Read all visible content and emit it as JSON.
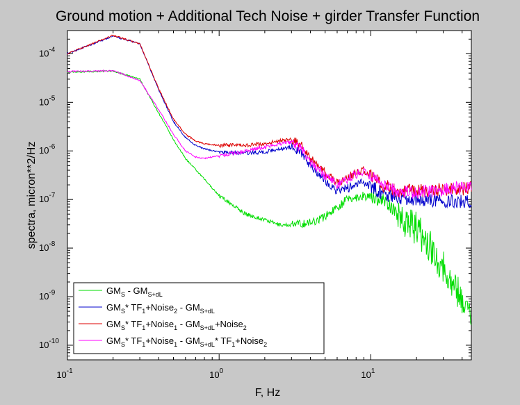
{
  "chart_data": {
    "type": "line",
    "title": "Ground motion + Additional Tech Noise + girder Transfer Function",
    "xlabel": "F, Hz",
    "ylabel": "spectra, micron**2/Hz",
    "xscale": "log",
    "yscale": "log",
    "xlim": [
      0.1,
      46
    ],
    "ylim": [
      5e-11,
      0.0003
    ],
    "x_ticks": [
      {
        "value": 0.1,
        "base": "10",
        "exp": "-1"
      },
      {
        "value": 1,
        "base": "10",
        "exp": "0"
      },
      {
        "value": 10,
        "base": "10",
        "exp": "1"
      }
    ],
    "y_ticks": [
      {
        "value": 1e-10,
        "base": "10",
        "exp": "-10"
      },
      {
        "value": 1e-09,
        "base": "10",
        "exp": "-9"
      },
      {
        "value": 1e-08,
        "base": "10",
        "exp": "-8"
      },
      {
        "value": 1e-07,
        "base": "10",
        "exp": "-7"
      },
      {
        "value": 1e-06,
        "base": "10",
        "exp": "-6"
      },
      {
        "value": 1e-05,
        "base": "10",
        "exp": "-5"
      },
      {
        "value": 0.0001,
        "base": "10",
        "exp": "-4"
      }
    ],
    "grid": false,
    "legend_position": "bottom-left",
    "series": [
      {
        "color": "#00dd00",
        "legend": [
          [
            "GM",
            ""
          ],
          [
            "S",
            "sub"
          ],
          [
            "  -  GM",
            ""
          ],
          [
            "S+dL",
            "sub"
          ]
        ],
        "x": [
          0.1,
          0.2,
          0.3,
          0.4,
          0.5,
          0.6,
          0.8,
          1.0,
          1.5,
          2.0,
          2.5,
          3.0,
          4.0,
          5.0,
          6.0,
          7.0,
          8.0,
          9.0,
          10,
          12,
          15,
          20,
          25,
          30,
          35,
          40,
          46
        ],
        "y": [
          4.2e-05,
          4.4e-05,
          3e-05,
          6e-06,
          1.7e-06,
          7e-07,
          2.6e-07,
          1.2e-07,
          5e-08,
          3.8e-08,
          3e-08,
          3e-08,
          3.3e-08,
          4.5e-08,
          7e-08,
          1e-07,
          1.1e-07,
          1.2e-07,
          1.1e-07,
          1e-07,
          5e-08,
          2.5e-08,
          1e-08,
          4e-09,
          1.8e-09,
          9e-10,
          4e-10
        ]
      },
      {
        "color": "#0000cc",
        "legend": [
          [
            "GM",
            ""
          ],
          [
            "S",
            "sub"
          ],
          [
            "* TF",
            ""
          ],
          [
            "1",
            "sub"
          ],
          [
            "+Noise",
            ""
          ],
          [
            "2",
            "sub"
          ],
          [
            "  -  GM",
            ""
          ],
          [
            "S+dL",
            "sub"
          ]
        ],
        "x": [
          0.1,
          0.2,
          0.3,
          0.4,
          0.5,
          0.6,
          0.7,
          0.8,
          1.0,
          1.5,
          2.0,
          2.5,
          3.0,
          3.5,
          4.0,
          5.0,
          6.0,
          7.0,
          8.0,
          9.0,
          10,
          12,
          15,
          20,
          30,
          46
        ],
        "y": [
          0.0001,
          0.00023,
          0.00016,
          1.8e-05,
          4e-06,
          1.9e-06,
          1.3e-06,
          1.1e-06,
          9.5e-07,
          9e-07,
          9.5e-07,
          1.1e-06,
          1.2e-06,
          9e-07,
          5e-07,
          2.5e-07,
          1.5e-07,
          1.7e-07,
          2e-07,
          2.3e-07,
          1.9e-07,
          1.3e-07,
          1.1e-07,
          1e-07,
          9.5e-08,
          9e-08
        ]
      },
      {
        "color": "#dd0000",
        "legend": [
          [
            "GM",
            ""
          ],
          [
            "S",
            "sub"
          ],
          [
            "* TF",
            ""
          ],
          [
            "1",
            "sub"
          ],
          [
            "+Noise",
            ""
          ],
          [
            "1",
            "sub"
          ],
          [
            "  -  GM",
            ""
          ],
          [
            "S+dL",
            "sub"
          ],
          [
            "+Noise",
            ""
          ],
          [
            "2",
            "sub"
          ]
        ],
        "x": [
          0.1,
          0.2,
          0.3,
          0.4,
          0.5,
          0.6,
          0.7,
          0.8,
          1.0,
          1.5,
          2.0,
          2.5,
          3.0,
          3.5,
          4.0,
          5.0,
          6.0,
          7.0,
          8.0,
          9.0,
          10,
          12,
          15,
          20,
          30,
          46
        ],
        "y": [
          0.0001,
          0.00024,
          0.00016,
          1.9e-05,
          4.5e-06,
          2.2e-06,
          1.6e-06,
          1.4e-06,
          1.3e-06,
          1.3e-06,
          1.4e-06,
          1.6e-06,
          1.7e-06,
          1.3e-06,
          7e-07,
          3.5e-07,
          2.2e-07,
          2.8e-07,
          3.5e-07,
          4e-07,
          3.2e-07,
          2e-07,
          1.5e-07,
          1.5e-07,
          1.6e-07,
          1.7e-07
        ]
      },
      {
        "color": "#ff00ff",
        "legend": [
          [
            "GM",
            ""
          ],
          [
            "S",
            "sub"
          ],
          [
            "* TF",
            ""
          ],
          [
            "1",
            "sub"
          ],
          [
            "+Noise",
            ""
          ],
          [
            "1",
            "sub"
          ],
          [
            "  -  GM",
            ""
          ],
          [
            "S+dL",
            "sub"
          ],
          [
            "* TF",
            ""
          ],
          [
            "1",
            "sub"
          ],
          [
            "+Noise",
            ""
          ],
          [
            "2",
            "sub"
          ]
        ],
        "x": [
          0.1,
          0.2,
          0.3,
          0.4,
          0.5,
          0.6,
          0.7,
          0.8,
          1.0,
          1.5,
          2.0,
          2.5,
          3.0,
          3.5,
          4.0,
          5.0,
          6.0,
          7.0,
          8.0,
          9.0,
          10,
          12,
          15,
          20,
          30,
          46
        ],
        "y": [
          4.3e-05,
          4.5e-05,
          2.8e-05,
          7e-06,
          2.2e-06,
          1e-06,
          7.5e-07,
          7e-07,
          8e-07,
          1e-06,
          1.2e-06,
          1.4e-06,
          1.5e-06,
          1.1e-06,
          6e-07,
          3e-07,
          2e-07,
          2.6e-07,
          3.3e-07,
          3.8e-07,
          3e-07,
          1.9e-07,
          1.4e-07,
          1.4e-07,
          1.6e-07,
          1.8e-07
        ]
      }
    ]
  }
}
